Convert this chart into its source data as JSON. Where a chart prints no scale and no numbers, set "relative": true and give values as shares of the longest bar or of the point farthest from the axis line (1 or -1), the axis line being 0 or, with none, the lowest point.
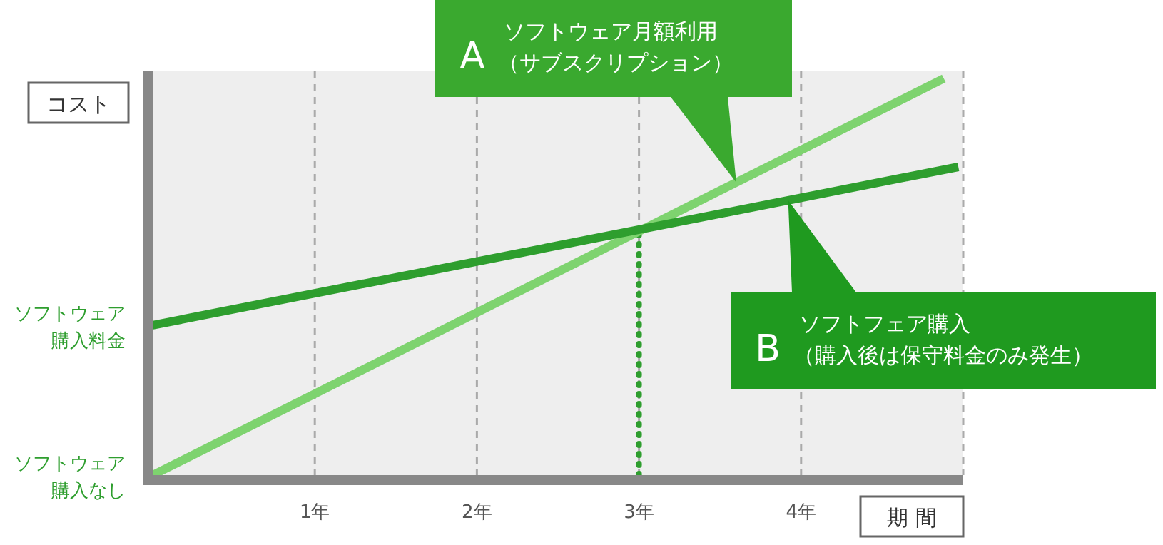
{
  "chart_data": {
    "type": "line",
    "xlabel": "期 間",
    "ylabel": "コスト",
    "relative": true,
    "xlim": [
      0,
      5
    ],
    "xticks": [
      {
        "value": 1,
        "label": "1年"
      },
      {
        "value": 2,
        "label": "2年"
      },
      {
        "value": 3,
        "label": "3年"
      },
      {
        "value": 4,
        "label": "4年"
      },
      {
        "value": 5,
        "label": null
      }
    ],
    "grid": "x",
    "line_style": "solid",
    "series": [
      {
        "name": "A ソフトウェア月額利用（サブスクリプション）",
        "color": "#7ed36f",
        "x": [
          0,
          4.88
        ],
        "values": [
          0,
          1
        ]
      },
      {
        "name": "B ソフトフェア購入（購入後は保守料金のみ発生）",
        "color": "#2e9e2e",
        "x": [
          0,
          4.97
        ],
        "values": [
          0.378,
          0.777
        ]
      }
    ],
    "ref_lines": [
      {
        "axis": "x",
        "value": 3,
        "line_style": "dotted",
        "color": "#2e9e2e"
      }
    ],
    "annotations": [
      {
        "text": "ソフトウェア購入料金",
        "x": 0,
        "y": 0.378
      },
      {
        "text": "ソフトウェア購入なし",
        "x": 0,
        "y": 0
      }
    ]
  }
}
